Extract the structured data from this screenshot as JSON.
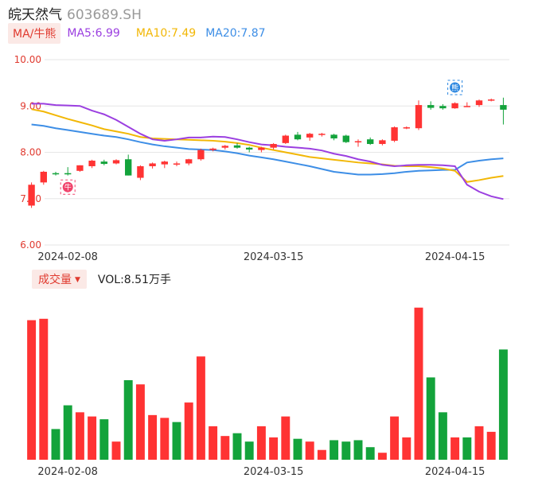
{
  "header": {
    "name": "皖天然气",
    "code": "603689.SH"
  },
  "ma_legend": {
    "chip": "MA/牛熊",
    "ma5": "MA5:6.99",
    "ma10": "MA10:7.49",
    "ma20": "MA20:7.87"
  },
  "vol_legend": {
    "chip": "成交量",
    "chip_arrow": "▼",
    "vol": "VOL:8.51万手"
  },
  "badges": {
    "bull": "牛",
    "bear": "熊"
  },
  "colors": {
    "up": "#ff3333",
    "down": "#13a33b",
    "ma5": "#9b3fe0",
    "ma10": "#f2b705",
    "ma20": "#3d8ee6",
    "grid": "#e6e6e6",
    "axis_text": "#e03a2f"
  },
  "chart_data": [
    {
      "type": "candlestick",
      "title": "",
      "ylim": [
        6.0,
        10.0
      ],
      "y_ticks": [
        "10.00",
        "9.00",
        "8.00",
        "7.00",
        "6.00"
      ],
      "x_tick_labels": [
        {
          "label": "2024-02-08",
          "index": 3
        },
        {
          "label": "2024-03-15",
          "index": 20
        },
        {
          "label": "2024-04-15",
          "index": 35
        }
      ],
      "grid": true,
      "candles": [
        {
          "o": 6.85,
          "h": 7.35,
          "l": 6.8,
          "c": 7.3
        },
        {
          "o": 7.35,
          "h": 7.6,
          "l": 7.3,
          "c": 7.58
        },
        {
          "o": 7.55,
          "h": 7.58,
          "l": 7.5,
          "c": 7.53
        },
        {
          "o": 7.55,
          "h": 7.68,
          "l": 7.5,
          "c": 7.54
        },
        {
          "o": 7.6,
          "h": 7.72,
          "l": 7.58,
          "c": 7.72
        },
        {
          "o": 7.7,
          "h": 7.84,
          "l": 7.66,
          "c": 7.82
        },
        {
          "o": 7.8,
          "h": 7.84,
          "l": 7.72,
          "c": 7.75
        },
        {
          "o": 7.76,
          "h": 7.85,
          "l": 7.74,
          "c": 7.83
        },
        {
          "o": 7.85,
          "h": 7.95,
          "l": 7.5,
          "c": 7.5
        },
        {
          "o": 7.45,
          "h": 7.72,
          "l": 7.4,
          "c": 7.7
        },
        {
          "o": 7.7,
          "h": 7.78,
          "l": 7.65,
          "c": 7.76
        },
        {
          "o": 7.74,
          "h": 7.82,
          "l": 7.66,
          "c": 7.8
        },
        {
          "o": 7.75,
          "h": 7.8,
          "l": 7.7,
          "c": 7.76
        },
        {
          "o": 7.76,
          "h": 7.86,
          "l": 7.72,
          "c": 7.85
        },
        {
          "o": 7.85,
          "h": 8.08,
          "l": 7.82,
          "c": 8.05
        },
        {
          "o": 8.05,
          "h": 8.1,
          "l": 8.02,
          "c": 8.08
        },
        {
          "o": 8.1,
          "h": 8.16,
          "l": 8.06,
          "c": 8.14
        },
        {
          "o": 8.15,
          "h": 8.2,
          "l": 8.08,
          "c": 8.1
        },
        {
          "o": 8.1,
          "h": 8.12,
          "l": 8.0,
          "c": 8.06
        },
        {
          "o": 8.05,
          "h": 8.12,
          "l": 8.0,
          "c": 8.1
        },
        {
          "o": 8.1,
          "h": 8.2,
          "l": 8.06,
          "c": 8.18
        },
        {
          "o": 8.2,
          "h": 8.38,
          "l": 8.18,
          "c": 8.36
        },
        {
          "o": 8.38,
          "h": 8.44,
          "l": 8.26,
          "c": 8.28
        },
        {
          "o": 8.32,
          "h": 8.42,
          "l": 8.25,
          "c": 8.4
        },
        {
          "o": 8.38,
          "h": 8.42,
          "l": 8.34,
          "c": 8.4
        },
        {
          "o": 8.38,
          "h": 8.4,
          "l": 8.26,
          "c": 8.3
        },
        {
          "o": 8.36,
          "h": 8.38,
          "l": 8.2,
          "c": 8.22
        },
        {
          "o": 8.24,
          "h": 8.28,
          "l": 8.12,
          "c": 8.24
        },
        {
          "o": 8.28,
          "h": 8.32,
          "l": 8.16,
          "c": 8.18
        },
        {
          "o": 8.18,
          "h": 8.28,
          "l": 8.15,
          "c": 8.26
        },
        {
          "o": 8.25,
          "h": 8.56,
          "l": 8.22,
          "c": 8.54
        },
        {
          "o": 8.52,
          "h": 8.56,
          "l": 8.5,
          "c": 8.54
        },
        {
          "o": 8.52,
          "h": 9.12,
          "l": 8.48,
          "c": 9.02
        },
        {
          "o": 9.02,
          "h": 9.1,
          "l": 8.92,
          "c": 8.96
        },
        {
          "o": 9.0,
          "h": 9.04,
          "l": 8.92,
          "c": 8.95
        },
        {
          "o": 8.95,
          "h": 9.08,
          "l": 8.94,
          "c": 9.06
        },
        {
          "o": 9.0,
          "h": 9.08,
          "l": 8.98,
          "c": 9.0
        },
        {
          "o": 9.02,
          "h": 9.14,
          "l": 8.98,
          "c": 9.12
        },
        {
          "o": 9.12,
          "h": 9.16,
          "l": 9.1,
          "c": 9.14
        },
        {
          "o": 9.02,
          "h": 9.18,
          "l": 8.6,
          "c": 8.92
        }
      ],
      "ma5": [
        9.05,
        9.05,
        9.02,
        9.01,
        9.0,
        8.9,
        8.82,
        8.7,
        8.55,
        8.4,
        8.28,
        8.25,
        8.28,
        8.32,
        8.32,
        8.34,
        8.33,
        8.28,
        8.22,
        8.17,
        8.15,
        8.12,
        8.1,
        8.08,
        8.04,
        7.97,
        7.92,
        7.85,
        7.8,
        7.73,
        7.7,
        7.72,
        7.73,
        7.73,
        7.72,
        7.7,
        7.66,
        7.62,
        7.55,
        7.48
      ],
      "ma10": [
        8.93,
        8.88,
        8.8,
        8.72,
        8.65,
        8.58,
        8.5,
        8.45,
        8.4,
        8.33,
        8.3,
        8.29,
        8.28,
        8.27,
        8.26,
        8.25,
        8.23,
        8.2,
        8.16,
        8.1,
        8.05,
        8.0,
        7.95,
        7.9,
        7.87,
        7.84,
        7.81,
        7.78,
        7.76,
        7.74,
        7.71,
        7.7,
        7.7,
        7.68,
        7.65,
        7.6,
        7.56,
        7.53,
        7.5,
        7.48
      ],
      "ma20": [
        8.6,
        8.57,
        8.52,
        8.48,
        8.44,
        8.4,
        8.36,
        8.33,
        8.28,
        8.22,
        8.17,
        8.13,
        8.1,
        8.07,
        8.06,
        8.05,
        8.02,
        7.98,
        7.93,
        7.89,
        7.85,
        7.8,
        7.75,
        7.7,
        7.64,
        7.58,
        7.55,
        7.52,
        7.52,
        7.53,
        7.55,
        7.58,
        7.6,
        7.61,
        7.62,
        7.62,
        7.63,
        7.66,
        7.72,
        7.78
      ],
      "ma_tail": {
        "ma5": [
          7.3,
          7.15,
          7.05,
          6.99
        ],
        "ma10": [
          7.36,
          7.4,
          7.45,
          7.49
        ],
        "ma20": [
          7.78,
          7.82,
          7.85,
          7.87
        ]
      },
      "signals": [
        {
          "type": "bull",
          "index": 3,
          "price": 7.25
        },
        {
          "type": "bear",
          "index": 35,
          "price": 9.4
        }
      ]
    },
    {
      "type": "bar",
      "title": "成交量",
      "values": [
        100,
        101,
        22,
        39,
        34,
        31,
        29,
        13,
        57,
        54,
        32,
        30,
        27,
        41,
        74,
        24,
        17,
        19,
        13,
        24,
        16,
        31,
        15,
        13,
        7,
        14,
        13,
        14,
        9,
        5,
        31,
        16,
        109,
        59,
        34,
        16,
        16,
        24,
        20,
        79
      ],
      "colors_up_down": [
        "up",
        "up",
        "down",
        "down",
        "up",
        "up",
        "down",
        "up",
        "down",
        "up",
        "up",
        "up",
        "down",
        "up",
        "up",
        "up",
        "up",
        "down",
        "down",
        "up",
        "up",
        "up",
        "down",
        "up",
        "up",
        "down",
        "down",
        "down",
        "down",
        "up",
        "up",
        "up",
        "up",
        "down",
        "down",
        "up",
        "down",
        "up",
        "up",
        "down"
      ],
      "ylim": [
        0,
        110
      ]
    }
  ]
}
